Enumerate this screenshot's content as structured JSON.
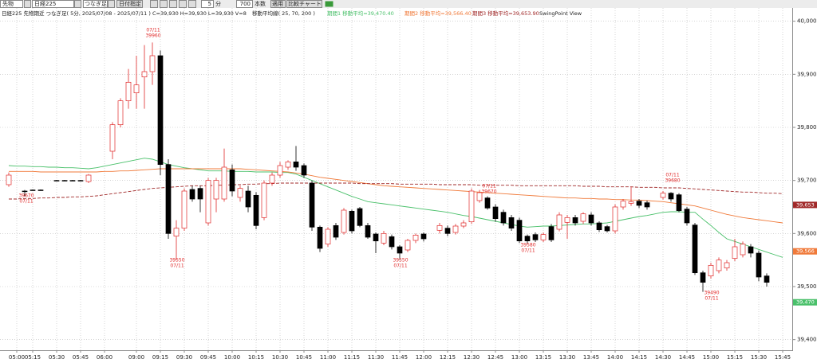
{
  "toolbar": {
    "market": "先物",
    "symbol": "日経225",
    "mode": "つなぎ足",
    "date_button": "日付指定",
    "interval": "5",
    "interval_unit": "分",
    "bars": "700",
    "bars_unit": "本数",
    "apply": "適用",
    "compare": "比較チャート"
  },
  "info": {
    "main": "日経225 先物期近 つなぎ足( 5分, 2025/07/08 - 2025/07/11 ) C=39,930 H=39,930 L=39,930 V=8",
    "ma_title": "移動平均線( 25, 70, 200 )",
    "ma1": "期間1 移動平均=39,470.40",
    "ma2": "期間2 移動平均=39,566.40",
    "ma3": "期間3 移動平均=39,653.90",
    "swing": "SwingPoint View"
  },
  "chart_data": {
    "type": "candlestick",
    "grid": true,
    "up_color": "#e02828",
    "down_color": "#000000",
    "ylim": [
      39380,
      40025
    ],
    "yticks": [
      {
        "value": 40000,
        "label": "40,000"
      },
      {
        "value": 39900,
        "label": "39,900"
      },
      {
        "value": 39800,
        "label": "39,800"
      },
      {
        "value": 39700,
        "label": "39,700"
      },
      {
        "value": 39600,
        "label": "39,600"
      },
      {
        "value": 39500,
        "label": "39,500"
      },
      {
        "value": 39400,
        "label": "39,400"
      }
    ],
    "categories": [
      null,
      "05:00",
      null,
      "05:15",
      null,
      null,
      "05:30",
      null,
      null,
      "05:45",
      null,
      null,
      "06:00",
      null,
      null,
      null,
      "09:00",
      null,
      null,
      "09:15",
      null,
      null,
      "09:30",
      null,
      null,
      "09:45",
      null,
      null,
      "10:00",
      null,
      null,
      "10:15",
      null,
      null,
      "10:30",
      null,
      null,
      "10:45",
      null,
      null,
      "11:00",
      null,
      null,
      "11:15",
      null,
      null,
      "11:30",
      null,
      null,
      "11:45",
      null,
      null,
      "12:00",
      null,
      null,
      "12:15",
      null,
      null,
      "12:30",
      null,
      null,
      "12:45",
      null,
      null,
      "13:00",
      null,
      null,
      "13:15",
      null,
      null,
      "13:30",
      null,
      null,
      "13:45",
      null,
      null,
      "14:00",
      null,
      null,
      "14:15",
      null,
      null,
      "14:30",
      null,
      null,
      "14:45",
      null,
      null,
      "15:00",
      null,
      null,
      "15:15",
      null,
      null,
      "15:30",
      null,
      null,
      "15:45"
    ],
    "open": [
      39692,
      null,
      39680,
      39682,
      39682,
      null,
      39700,
      39700,
      39700,
      39700,
      39698,
      null,
      null,
      39755,
      39805,
      39850,
      39865,
      39895,
      39905,
      39935,
      39730,
      39595,
      39610,
      39683,
      39685,
      39620,
      39665,
      39665,
      39720,
      39668,
      39680,
      39672,
      39630,
      39695,
      39710,
      39725,
      39735,
      39728,
      39695,
      39612,
      39580,
      39615,
      39602,
      39642,
      39647,
      39615,
      39599,
      39582,
      39594,
      39575,
      39569,
      39587,
      39599,
      null,
      39606,
      39610,
      39602,
      39614,
      39622,
      39662,
      39667,
      39650,
      39640,
      39630,
      39625,
      39595,
      39598,
      39588,
      39613,
      39608,
      39621,
      39630,
      39623,
      39635,
      39620,
      39613,
      39605,
      39650,
      39657,
      39661,
      39658,
      null,
      39668,
      39676,
      39673,
      39646,
      39616,
      39526,
      39520,
      39530,
      39535,
      39553,
      39560,
      39575,
      39563,
      39520,
      null,
      null
    ],
    "high": [
      39715,
      null,
      39682,
      39683,
      39683,
      null,
      39701,
      39701,
      39701,
      39701,
      39712,
      null,
      null,
      39810,
      39855,
      39910,
      39935,
      39955,
      39960,
      39945,
      39740,
      39625,
      39685,
      39690,
      39690,
      39705,
      39705,
      39760,
      39730,
      39690,
      39690,
      39678,
      39700,
      39715,
      39735,
      39738,
      39765,
      39732,
      39700,
      39615,
      39612,
      39620,
      39648,
      39645,
      39650,
      39620,
      39602,
      39605,
      39598,
      39578,
      39590,
      39600,
      39602,
      null,
      39620,
      39615,
      39618,
      39625,
      39685,
      39682,
      39670,
      39655,
      39645,
      39635,
      39630,
      39598,
      39602,
      39602,
      39618,
      39640,
      39635,
      39635,
      39640,
      39640,
      39623,
      39616,
      39655,
      39665,
      39688,
      39665,
      39662,
      null,
      39680,
      39678,
      39676,
      39650,
      39620,
      39530,
      39545,
      39555,
      39550,
      39590,
      39585,
      39580,
      39568,
      39525,
      null,
      null
    ],
    "low": [
      39688,
      null,
      39670,
      39681,
      39681,
      null,
      39699,
      39699,
      39699,
      39699,
      39695,
      null,
      null,
      39740,
      39800,
      39835,
      39835,
      39835,
      39880,
      39710,
      39590,
      39550,
      39605,
      39660,
      39640,
      39615,
      39640,
      39660,
      39670,
      39660,
      39640,
      39608,
      39625,
      39690,
      39705,
      39720,
      39718,
      39705,
      39605,
      39565,
      39575,
      39588,
      39598,
      39600,
      39612,
      39590,
      39563,
      39578,
      39570,
      39550,
      39565,
      39582,
      39585,
      null,
      39600,
      39595,
      39598,
      39610,
      39618,
      39658,
      39645,
      39622,
      39615,
      39605,
      39582,
      39580,
      39584,
      39584,
      39584,
      39604,
      39590,
      39615,
      39618,
      39615,
      39603,
      39602,
      39600,
      39645,
      39652,
      39648,
      39645,
      null,
      39664,
      39660,
      39640,
      39615,
      39522,
      39490,
      39515,
      39525,
      39530,
      39548,
      39555,
      39555,
      39510,
      39500,
      null,
      null
    ],
    "close": [
      39710,
      null,
      39680,
      39682,
      39682,
      null,
      39700,
      39700,
      39700,
      39700,
      39710,
      null,
      null,
      39805,
      39850,
      39885,
      39880,
      39905,
      39935,
      39730,
      39600,
      39610,
      39680,
      39665,
      39665,
      39700,
      39700,
      39725,
      39680,
      39685,
      39650,
      39615,
      39695,
      39710,
      39728,
      39735,
      39725,
      39710,
      39612,
      39572,
      39608,
      39593,
      39644,
      39605,
      39615,
      39593,
      39586,
      39600,
      39575,
      39563,
      39587,
      39597,
      39590,
      null,
      39615,
      39600,
      39614,
      39620,
      39680,
      39677,
      39648,
      39628,
      39620,
      39610,
      39586,
      39586,
      39588,
      39598,
      39588,
      39635,
      39630,
      39620,
      39637,
      39620,
      39607,
      39605,
      39650,
      39661,
      39660,
      39653,
      39650,
      null,
      39676,
      39665,
      39643,
      39620,
      39526,
      39508,
      39540,
      39550,
      39545,
      39575,
      39580,
      39563,
      39518,
      39508,
      null,
      null
    ],
    "series": [
      {
        "color": "#49c06a",
        "dashed": false,
        "values": [
          39728,
          39727,
          39727,
          39726,
          39726,
          39725,
          39725,
          39724,
          39724,
          39723,
          39722,
          39724,
          39727,
          39730,
          39733,
          39736,
          39739,
          39742,
          39740,
          39735,
          39730,
          39727,
          39724,
          39722,
          39720,
          39718,
          39718,
          39718,
          39717,
          39717,
          39717,
          39716,
          39716,
          39716,
          39715,
          39715,
          39712,
          39706,
          39700,
          39694,
          39688,
          39682,
          39676,
          39670,
          39665,
          39660,
          39658,
          39656,
          39654,
          39652,
          39650,
          39648,
          39646,
          39644,
          39642,
          39640,
          39637,
          39634,
          39632,
          39629,
          39626,
          39623,
          39620,
          39617,
          39614,
          39612,
          39613,
          39614,
          39614,
          39615,
          39616,
          39617,
          39618,
          39618,
          39619,
          39620,
          39623,
          39626,
          39629,
          39632,
          39634,
          39637,
          39640,
          39641,
          39641,
          39640,
          39640,
          39627,
          39615,
          39602,
          39590,
          39585,
          39580,
          39575,
          39570,
          39565,
          39560,
          39555
        ]
      },
      {
        "color": "#f07a3a",
        "dashed": false,
        "values": [
          39717,
          39717,
          39717,
          39717,
          39716,
          39716,
          39716,
          39716,
          39716,
          39716,
          39716,
          39716,
          39717,
          39717,
          39718,
          39718,
          39719,
          39720,
          39721,
          39722,
          39722,
          39722,
          39722,
          39722,
          39722,
          39722,
          39722,
          39722,
          39722,
          39722,
          39721,
          39720,
          39719,
          39718,
          39717,
          39716,
          39714,
          39712,
          39709,
          39706,
          39704,
          39702,
          39700,
          39698,
          39696,
          39694,
          39692,
          39690,
          39689,
          39688,
          39687,
          39686,
          39685,
          39684,
          39683,
          39682,
          39681,
          39680,
          39679,
          39678,
          39677,
          39676,
          39675,
          39674,
          39673,
          39672,
          39671,
          39670,
          39669,
          39668,
          39667,
          39667,
          39666,
          39666,
          39665,
          39665,
          39664,
          39664,
          39663,
          39663,
          39662,
          39661,
          39660,
          39658,
          39656,
          39654,
          39652,
          39648,
          39644,
          39640,
          39636,
          39633,
          39630,
          39628,
          39626,
          39624,
          39622,
          39620
        ]
      },
      {
        "color": "#a02828",
        "dashed": true,
        "values": [
          39665,
          39665,
          39666,
          39666,
          39667,
          39667,
          39668,
          39668,
          39669,
          39669,
          39670,
          39671,
          39673,
          39675,
          39677,
          39679,
          39681,
          39683,
          39685,
          39686,
          39687,
          39688,
          39689,
          39690,
          39690,
          39690,
          39691,
          39691,
          39692,
          39692,
          39693,
          39693,
          39694,
          39694,
          39695,
          39695,
          39695,
          39695,
          39695,
          39695,
          39695,
          39695,
          39695,
          39695,
          39694,
          39694,
          39694,
          39694,
          39694,
          39693,
          39693,
          39693,
          39693,
          39693,
          39692,
          39692,
          39692,
          39692,
          39692,
          39691,
          39691,
          39691,
          39691,
          39691,
          39690,
          39690,
          39690,
          39690,
          39690,
          39690,
          39690,
          39690,
          39689,
          39689,
          39689,
          39688,
          39688,
          39688,
          39688,
          39687,
          39687,
          39687,
          39686,
          39686,
          39686,
          39685,
          39684,
          39683,
          39682,
          39681,
          39680,
          39679,
          39678,
          39678,
          39677,
          39676,
          39676,
          39675
        ]
      }
    ],
    "price_tags": [
      {
        "value": 39653.9,
        "label": "39,653",
        "color": "#a02828"
      },
      {
        "value": 39566.4,
        "label": "39,566",
        "color": "#f07a3a"
      },
      {
        "value": 39470.4,
        "label": "39,470",
        "color": "#49c06a"
      }
    ],
    "annotations": [
      {
        "lines": [
          "07/11",
          "39960"
        ]
      },
      {
        "lines": [
          "39670",
          "07/11"
        ]
      },
      {
        "lines": [
          "39550",
          "07/11"
        ]
      },
      {
        "lines": [
          "39550",
          "07/11"
        ]
      },
      {
        "lines": [
          "07/11",
          "39670"
        ]
      },
      {
        "lines": [
          "39580",
          "07/11"
        ]
      },
      {
        "lines": [
          "07/11",
          "39680"
        ]
      },
      {
        "lines": [
          "39490",
          "07/11"
        ]
      }
    ]
  }
}
